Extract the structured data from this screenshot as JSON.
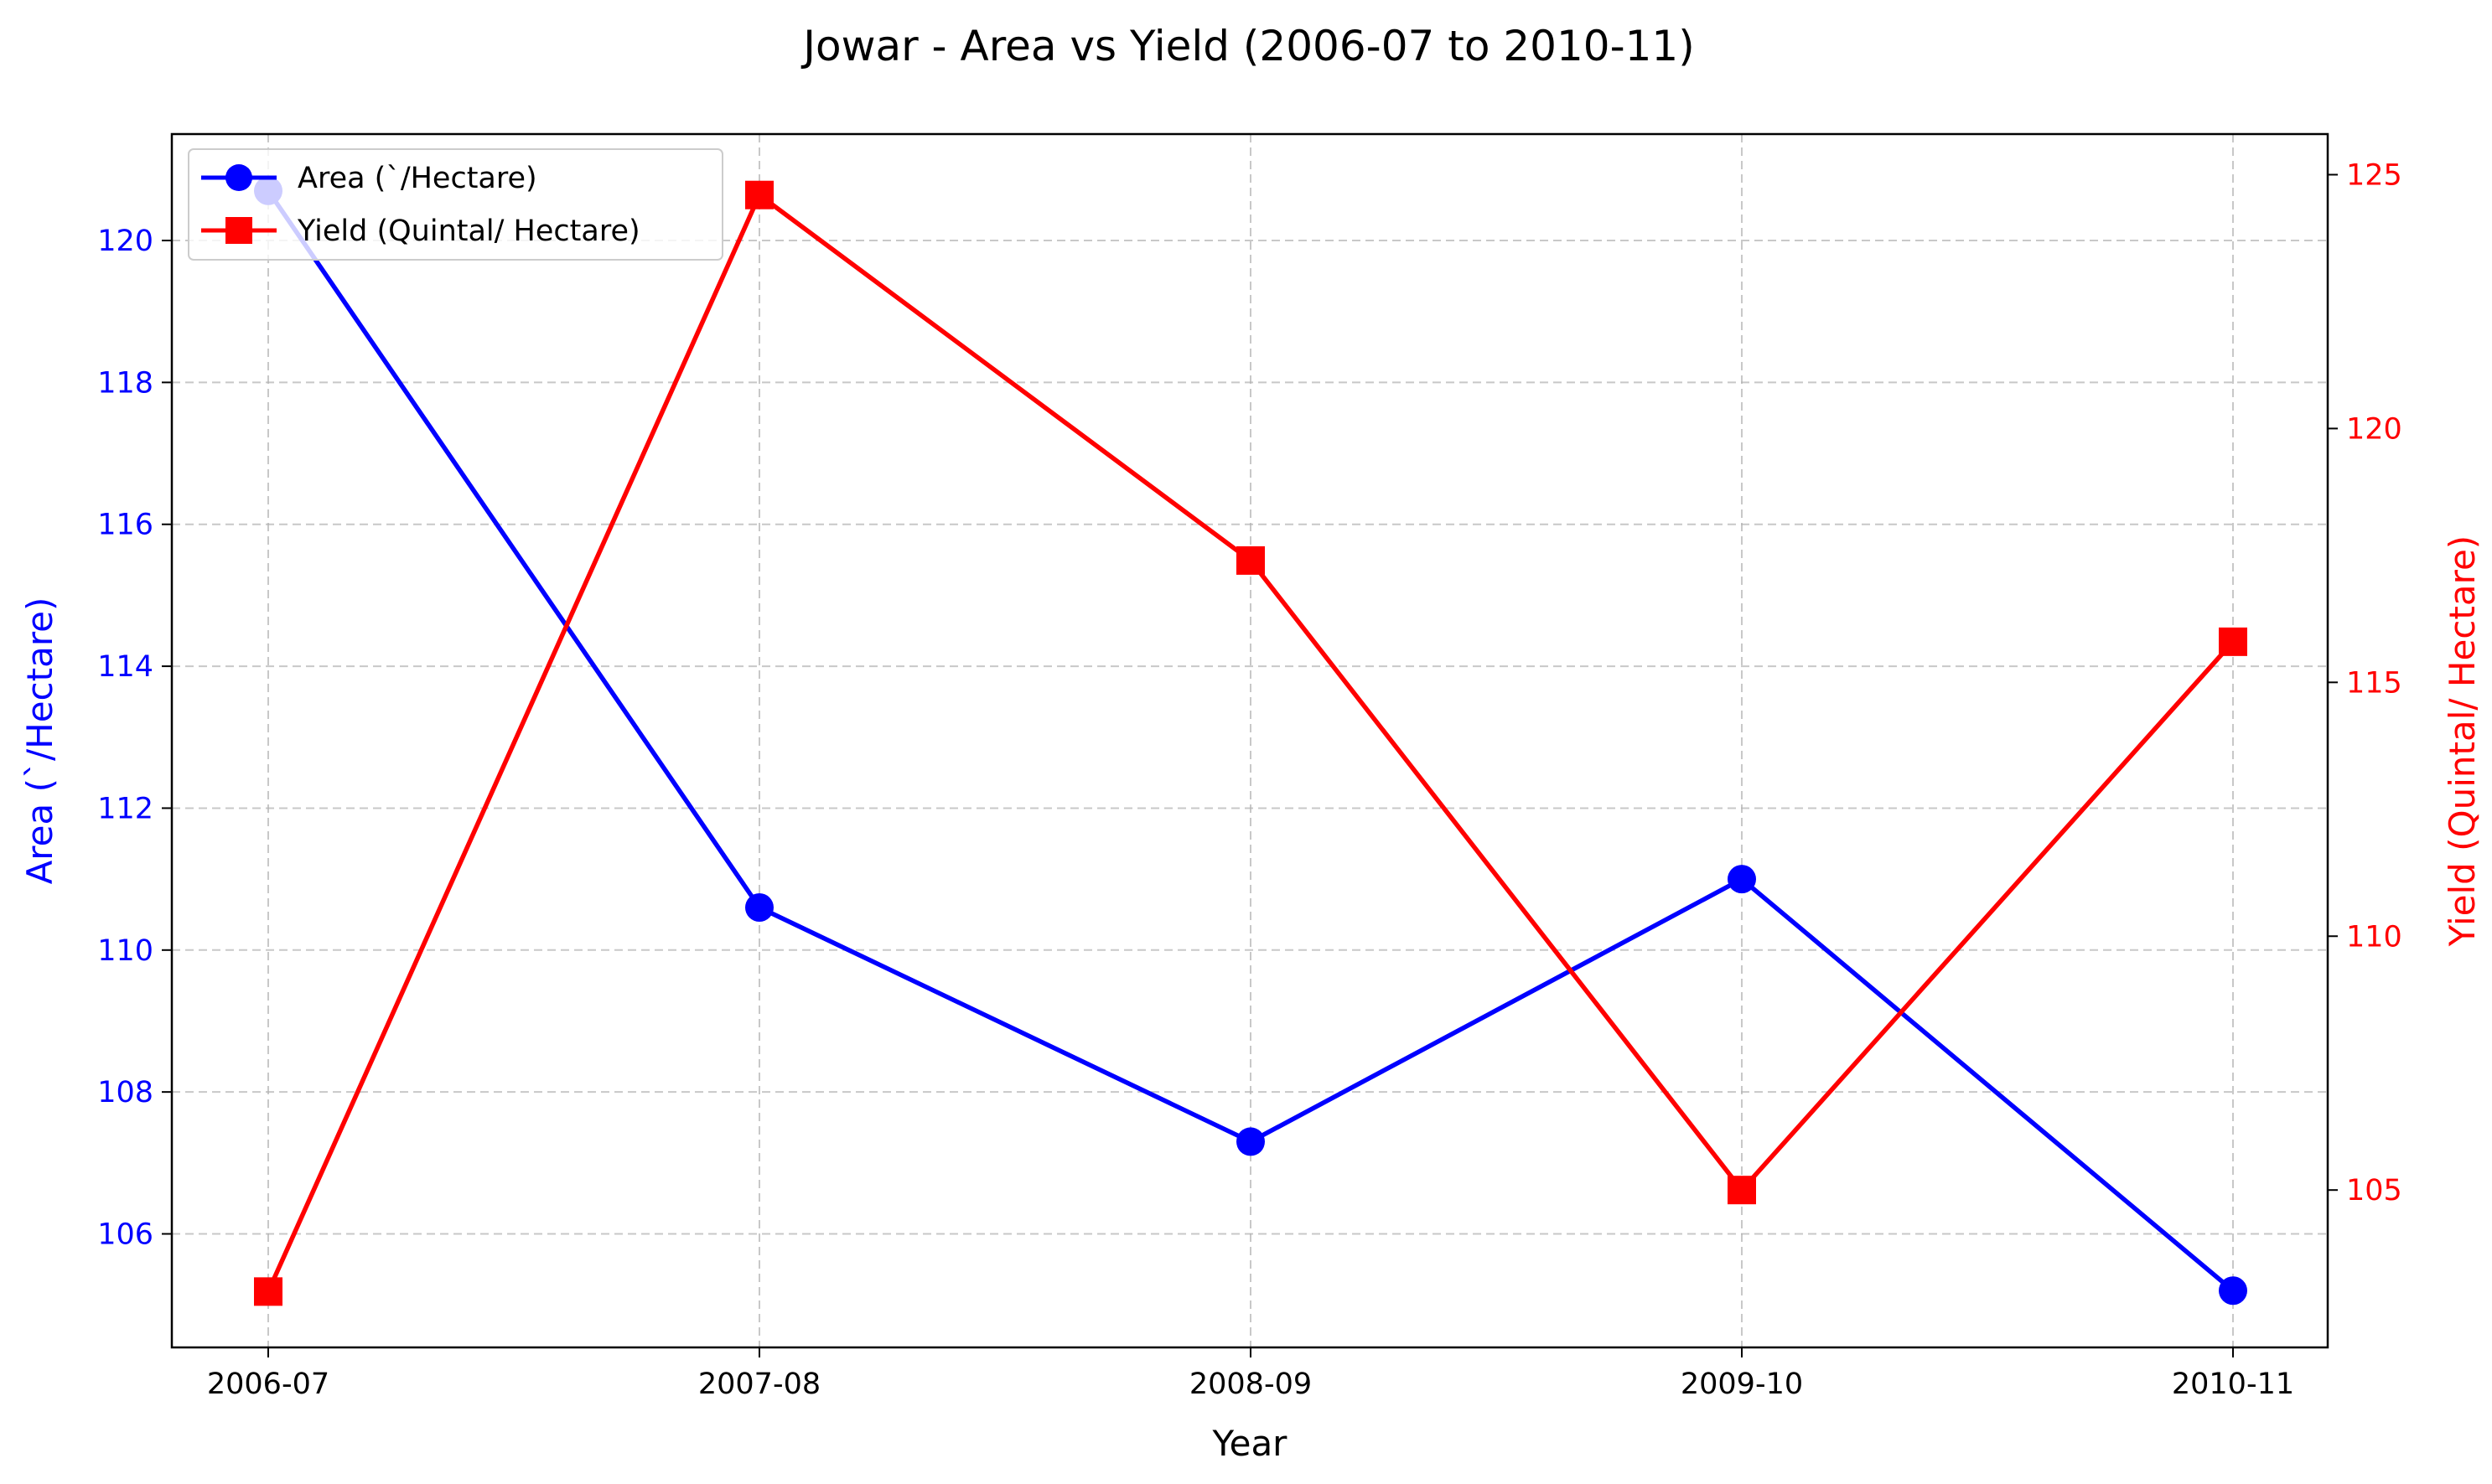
{
  "chart_data": {
    "type": "line",
    "title": "Jowar - Area vs Yield (2006-07 to 2010-11)",
    "xlabel": "Year",
    "categories": [
      "2006-07",
      "2007-08",
      "2008-09",
      "2009-10",
      "2010-11"
    ],
    "y_left": {
      "label": "Area (`/Hectare)",
      "color": "#0000ff",
      "range": [
        104.4,
        121.5
      ],
      "ticks": [
        106,
        108,
        110,
        112,
        114,
        116,
        118,
        120
      ]
    },
    "y_right": {
      "label": "Yield (Quintal/ Hectare)",
      "color": "#ff0000",
      "range": [
        101.9,
        125.8
      ],
      "ticks": [
        105,
        110,
        115,
        120,
        125
      ]
    },
    "series": [
      {
        "name": "Area (`/Hectare)",
        "axis": "left",
        "color": "#0000ff",
        "marker": "circle",
        "values": [
          120.7,
          110.6,
          107.3,
          111.0,
          105.2
        ]
      },
      {
        "name": "Yield (Quintal/ Hectare)",
        "axis": "right",
        "color": "#ff0000",
        "marker": "square",
        "values": [
          103.0,
          124.6,
          117.4,
          105.0,
          115.8
        ]
      }
    ],
    "grid": true,
    "grid_style": "dashed",
    "legend_position": "top-left"
  }
}
